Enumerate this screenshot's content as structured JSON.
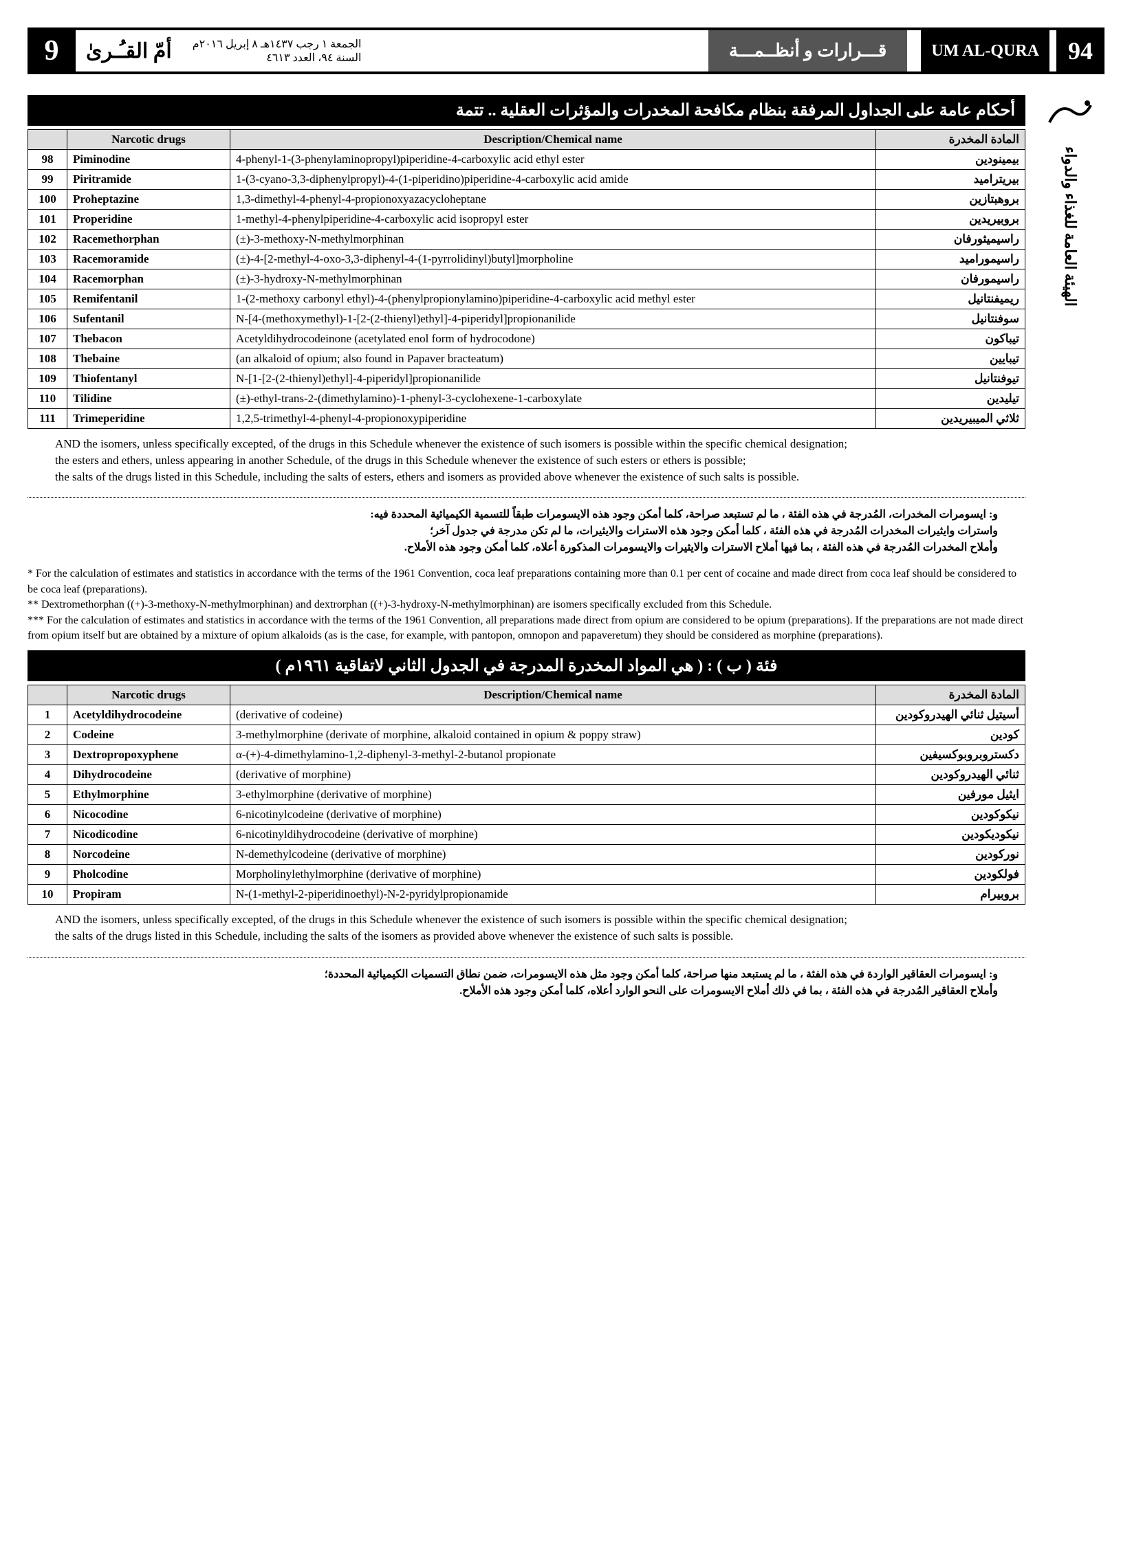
{
  "header": {
    "page_number": "9",
    "brand_ar": "أمّ القـُـرىٰ",
    "date_line1": "الجمعة ١ رجب ١٤٣٧هـ ٨ إبريل ٢٠١٦م",
    "date_line2": "السنة ٩٤، العدد ٤٦١٣",
    "mid_banner": "قـــرارات و أنظــمـــة",
    "brand_en": "UM AL-QURA",
    "year_box": "94"
  },
  "side": {
    "vertical_text": "الهيئة العامة للغذاء والدواء"
  },
  "banner1": "أحكام عامة على الجداول المرفقة بنظام مكافحة المخدرات والمؤثرات العقلية .. تتمة",
  "table1": {
    "headers": {
      "c1": "",
      "c2": "Narcotic drugs",
      "c3": "Description/Chemical name",
      "c4": "المادة المخدرة"
    },
    "rows": [
      [
        "98",
        "Piminodine",
        "4-phenyl-1-(3-phenylaminopropyl)piperidine-4-carboxylic acid ethyl ester",
        "بيمينودين"
      ],
      [
        "99",
        "Piritramide",
        "1-(3-cyano-3,3-diphenylpropyl)-4-(1-piperidino)piperidine-4-carboxylic acid amide",
        "بيريتراميد"
      ],
      [
        "100",
        "Proheptazine",
        "1,3-dimethyl-4-phenyl-4-propionoxyazacycloheptane",
        "بروهبتازين"
      ],
      [
        "101",
        "Properidine",
        "1-methyl-4-phenylpiperidine-4-carboxylic acid isopropyl ester",
        "بروبيريدين"
      ],
      [
        "102",
        "Racemethorphan",
        "(±)-3-methoxy-N-methylmorphinan",
        "راسيميثورفان"
      ],
      [
        "103",
        "Racemoramide",
        "(±)-4-[2-methyl-4-oxo-3,3-diphenyl-4-(1-pyrrolidinyl)butyl]morpholine",
        "راسيموراميد"
      ],
      [
        "104",
        "Racemorphan",
        "(±)-3-hydroxy-N-methylmorphinan",
        "راسيمورفان"
      ],
      [
        "105",
        "Remifentanil",
        "1-(2-methoxy carbonyl ethyl)-4-(phenylpropionylamino)piperidine-4-carboxylic acid methyl ester",
        "ريميفنتانيل"
      ],
      [
        "106",
        "Sufentanil",
        "N-[4-(methoxymethyl)-1-[2-(2-thienyl)ethyl]-4-piperidyl]propionanilide",
        "سوفنتانيل"
      ],
      [
        "107",
        "Thebacon",
        "Acetyldihydrocodeinone (acetylated enol form of hydrocodone)",
        "تيباكون"
      ],
      [
        "108",
        "Thebaine",
        "(an alkaloid of opium; also found in Papaver bracteatum)",
        "تيبايين"
      ],
      [
        "109",
        "Thiofentanyl",
        "N-[1-[2-(2-thienyl)ethyl]-4-piperidyl]propionanilide",
        "تيوفنتانيل"
      ],
      [
        "110",
        "Tilidine",
        "(±)-ethyl-trans-2-(dimethylamino)-1-phenyl-3-cyclohexene-1-carboxylate",
        "تيليدين"
      ],
      [
        "111",
        "Trimeperidine",
        "1,2,5-trimethyl-4-phenyl-4-propionoxypiperidine",
        "ثلاثي الميبيريدين"
      ]
    ]
  },
  "note1_en": [
    "AND the isomers, unless specifically excepted, of the drugs in this Schedule whenever the existence of such isomers is possible within the specific chemical designation;",
    "the esters and ethers, unless appearing in another Schedule, of the drugs in this Schedule whenever the existence of such esters or ethers is possible;",
    "the salts of the drugs listed in this Schedule, including the salts of esters, ethers and isomers as provided above whenever the existence of such salts is possible."
  ],
  "note1_ar": [
    "و: ايسومرات المخدرات، المُدرجة في هذه الفئة ، ما لم تستبعد صراحة، كلما أمكن وجود هذه الايسومرات طبقاً للتسمية الكيميائية المحددة فيه:",
    "واسترات وايثيرات المخدرات المُدرجة في هذه الفئة ، كلما أمكن وجود هذه الاسترات والايثيرات، ما لم تكن مدرجة في جدول آخر؛",
    "وأملاح المخدرات المُدرجة في هذه الفئة ، بما فيها أملاح الاسترات والايثيرات والايسومرات المذكورة أعلاه، كلما أمكن وجود هذه الأملاح."
  ],
  "footnotes": [
    "* For the calculation of estimates and statistics in accordance with the terms of the 1961 Convention, coca leaf preparations containing more than 0.1 per cent of cocaine and made direct from coca leaf should be considered to be coca leaf (preparations).",
    "** Dextromethorphan ((+)-3-methoxy-N-methylmorphinan) and dextrorphan ((+)-3-hydroxy-N-methylmorphinan) are isomers specifically excluded from this Schedule.",
    "*** For the calculation of estimates and statistics in accordance with the terms of the 1961 Convention, all preparations made direct from opium are considered to be opium (preparations). If the preparations are not made direct from opium itself but are obtained by a mixture of opium alkaloids (as is the case, for example, with pantopon, omnopon and papaveretum) they should be considered as morphine (preparations)."
  ],
  "banner2": "فئة ( ب ) : ( هي المواد المخدرة المدرجة في الجدول الثاني لاتفاقية ١٩٦١م )",
  "table2": {
    "headers": {
      "c1": "",
      "c2": "Narcotic drugs",
      "c3": "Description/Chemical name",
      "c4": "المادة المخدرة"
    },
    "rows": [
      [
        "1",
        "Acetyldihydrocodeine",
        "(derivative of codeine)",
        "أسيتيل ثنائي الهيدروكودين"
      ],
      [
        "2",
        "Codeine",
        "3-methylmorphine (derivate of morphine, alkaloid contained in opium & poppy straw)",
        "كودين"
      ],
      [
        "3",
        "Dextropropoxyphene",
        "α-(+)-4-dimethylamino-1,2-diphenyl-3-methyl-2-butanol propionate",
        "دكستروبروبوكسيفين"
      ],
      [
        "4",
        "Dihydrocodeine",
        "(derivative of morphine)",
        "ثنائي الهيدروكودين"
      ],
      [
        "5",
        "Ethylmorphine",
        "3-ethylmorphine (derivative of morphine)",
        "ايثيل مورفين"
      ],
      [
        "6",
        "Nicocodine",
        "6-nicotinylcodeine (derivative of morphine)",
        "نيكوكودين"
      ],
      [
        "7",
        "Nicodicodine",
        "6-nicotinyldihydrocodeine (derivative of morphine)",
        "نيكوديكودين"
      ],
      [
        "8",
        "Norcodeine",
        "N-demethylcodeine (derivative of morphine)",
        "نوركودين"
      ],
      [
        "9",
        "Pholcodine",
        "Morpholinylethylmorphine (derivative of morphine)",
        "فولكودين"
      ],
      [
        "10",
        "Propiram",
        "N-(1-methyl-2-piperidinoethyl)-N-2-pyridylpropionamide",
        "بروبيرام"
      ]
    ]
  },
  "note2_en": [
    "AND the isomers, unless specifically excepted, of the drugs in this Schedule whenever the existence of such isomers is possible within the specific chemical designation;",
    "the salts of the drugs listed in this Schedule, including the salts of the isomers as provided above whenever the existence of such salts is possible."
  ],
  "note2_ar": [
    "و: ايسومرات العقاقير الواردة في هذه الفئة ، ما لم يستبعد منها صراحة، كلما أمكن وجود مثل هذه الايسومرات، ضمن نطاق التسميات الكيميائية المحددة؛",
    "وأملاح العقاقير المُدرجة في هذه الفئة ، بما في ذلك أملاح الايسومرات على النحو الوارد أعلاه، كلما أمكن وجود هذه الأملاح."
  ]
}
